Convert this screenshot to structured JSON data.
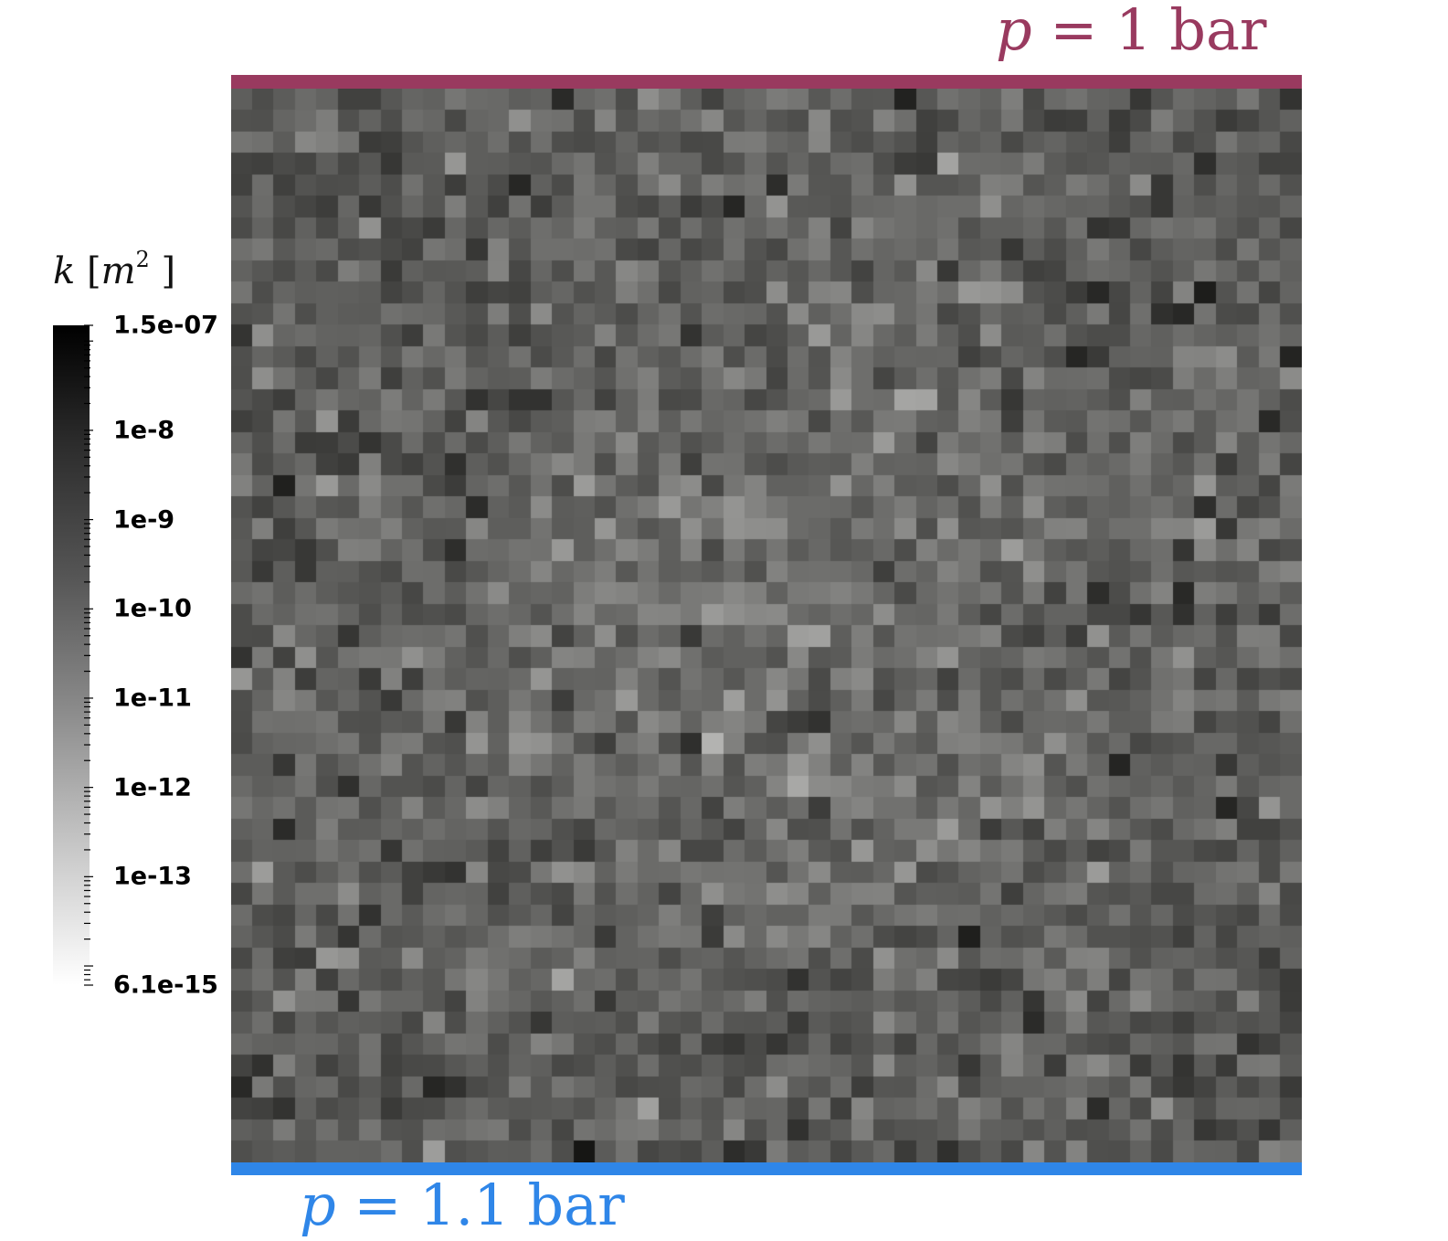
{
  "top_boundary": {
    "variable": "p",
    "equals": "=",
    "value": "1",
    "unit": "bar",
    "color": "#993a5f"
  },
  "bottom_boundary": {
    "variable": "p",
    "equals": "=",
    "value": "1.1",
    "unit": "bar",
    "color": "#2f86e8"
  },
  "colorbar": {
    "var": "k",
    "unit": "m",
    "exponent": "2",
    "labels": [
      "1.5e-07",
      "1e-8",
      "1e-9",
      "1e-10",
      "1e-11",
      "1e-12",
      "1e-13",
      "6.1e-15"
    ],
    "max": 1.5e-07,
    "min": 6.1e-15,
    "scale": "log",
    "colormap": "grayscale (dark = high k)"
  },
  "field": {
    "grid_cols": 50,
    "grid_rows": 50,
    "distribution": "random log-normal permeability"
  }
}
